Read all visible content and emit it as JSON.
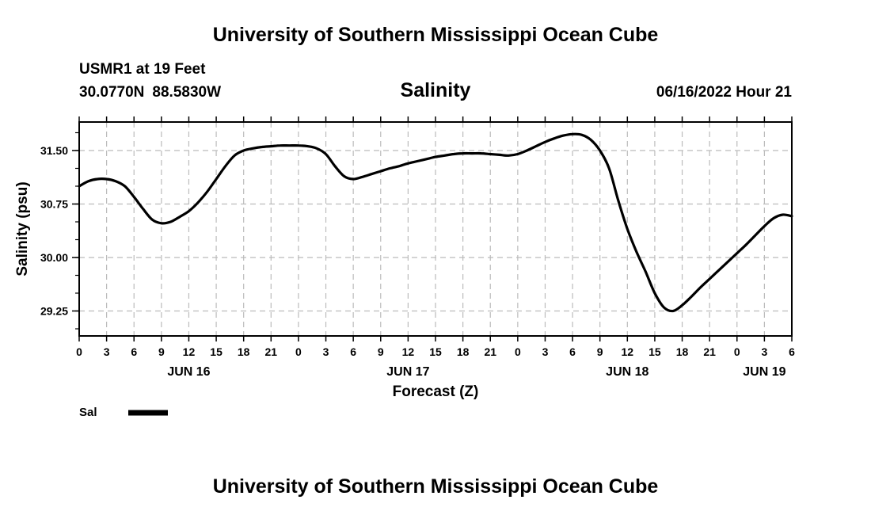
{
  "header": {
    "title": "University of Southern Mississippi Ocean Cube",
    "station": "USMR1 at 19 Feet",
    "lat": "30.0770N",
    "lon": "88.5830W",
    "plot_title": "Salinity",
    "timestamp": "06/16/2022 Hour 21"
  },
  "footer": {
    "title": "University of Southern Mississippi Ocean Cube"
  },
  "legend": {
    "label": "Sal"
  },
  "chart_data": {
    "type": "line",
    "title": "Salinity",
    "xlabel": "Forecast (Z)",
    "ylabel": "Salinity (psu)",
    "x_unit": "hours from JUN 16 00Z",
    "xlim": [
      0,
      78
    ],
    "ylim": [
      28.9,
      31.9
    ],
    "y_ticks": [
      29.25,
      30.0,
      30.75,
      31.5
    ],
    "y_tick_labels": [
      "29.25",
      "30.00",
      "30.75",
      "31.50"
    ],
    "x_ticks": [
      0,
      3,
      6,
      9,
      12,
      15,
      18,
      21,
      24,
      27,
      30,
      33,
      36,
      39,
      42,
      45,
      48,
      51,
      54,
      57,
      60,
      63,
      66,
      69,
      72,
      75,
      78
    ],
    "x_tick_labels": [
      "0",
      "3",
      "6",
      "9",
      "12",
      "15",
      "18",
      "21",
      "0",
      "3",
      "6",
      "9",
      "12",
      "15",
      "18",
      "21",
      "0",
      "3",
      "6",
      "9",
      "12",
      "15",
      "18",
      "21",
      "0",
      "3",
      "6"
    ],
    "day_labels": [
      {
        "label": "JUN 16",
        "hour": 12
      },
      {
        "label": "JUN 17",
        "hour": 36
      },
      {
        "label": "JUN 18",
        "hour": 60
      },
      {
        "label": "JUN 19",
        "hour": 75
      }
    ],
    "grid": true,
    "series": [
      {
        "name": "Sal",
        "color": "#000000",
        "x": [
          0,
          1,
          2,
          3,
          4,
          5,
          6,
          7,
          8,
          9,
          10,
          11,
          12,
          13,
          14,
          15,
          16,
          17,
          18,
          19,
          20,
          21,
          22,
          23,
          24,
          25,
          26,
          27,
          28,
          29,
          30,
          31,
          32,
          33,
          34,
          35,
          36,
          37,
          38,
          39,
          40,
          41,
          42,
          43,
          44,
          45,
          46,
          47,
          48,
          49,
          50,
          51,
          52,
          53,
          54,
          55,
          56,
          57,
          58,
          59,
          60,
          61,
          62,
          63,
          64,
          65,
          66,
          67,
          68,
          69,
          70,
          71,
          72,
          73,
          74,
          75,
          76,
          77,
          78
        ],
        "values": [
          31.0,
          31.07,
          31.1,
          31.1,
          31.07,
          31.0,
          30.85,
          30.68,
          30.53,
          30.48,
          30.5,
          30.57,
          30.65,
          30.77,
          30.92,
          31.1,
          31.28,
          31.43,
          31.5,
          31.53,
          31.55,
          31.56,
          31.57,
          31.57,
          31.57,
          31.56,
          31.53,
          31.45,
          31.28,
          31.14,
          31.1,
          31.13,
          31.17,
          31.21,
          31.25,
          31.28,
          31.32,
          31.35,
          31.38,
          31.41,
          31.43,
          31.45,
          31.46,
          31.46,
          31.46,
          31.45,
          31.44,
          31.43,
          31.45,
          31.5,
          31.56,
          31.62,
          31.67,
          31.71,
          31.73,
          31.72,
          31.65,
          31.5,
          31.25,
          30.8,
          30.4,
          30.08,
          29.8,
          29.5,
          29.3,
          29.25,
          29.33,
          29.45,
          29.58,
          29.7,
          29.82,
          29.94,
          30.06,
          30.18,
          30.31,
          30.44,
          30.55,
          30.6,
          30.58
        ]
      }
    ]
  }
}
